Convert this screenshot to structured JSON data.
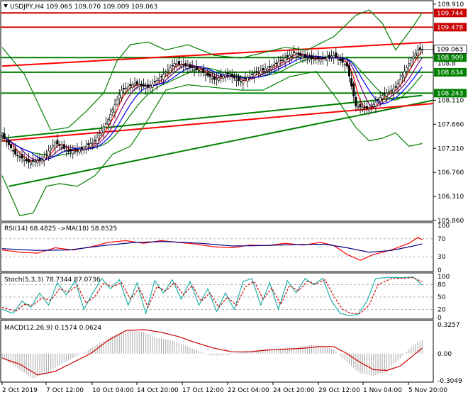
{
  "header": {
    "title": "USDJPY,H4  109.065 109.070 109.009 109.063"
  },
  "colors": {
    "bull": "#000000",
    "bear": "#000000",
    "bollinger": "#008000",
    "ma_fast": "#ff0000",
    "ma_mid": "#800080",
    "ma_slow": "#0000ff",
    "sr_line": "#cc0000",
    "trend_green": "#008000",
    "trend_red": "#ff0000",
    "rsi_line": "#ff0000",
    "rsi_ma": "#000080",
    "stoch_main": "#20b2aa",
    "stoch_signal": "#cc0000",
    "macd_hist": "#a9a9a9",
    "macd_signal": "#cc0000",
    "price_label_bg": "#cc0000",
    "level_label_bg": "#008000",
    "current_price_bg": "#ffffff"
  },
  "chart_data": [
    {
      "type": "candlestick",
      "title": "USDJPY,H4",
      "ohlc_readout": "109.065 109.070 109.009 109.063",
      "ylim": [
        105.86,
        109.96
      ],
      "y_ticks": [
        "109.910",
        "108.110",
        "107.660",
        "107.210",
        "106.760",
        "106.310",
        "105.860"
      ],
      "x_ticks": [
        "2 Oct 2019",
        "7 Oct 12:00",
        "10 Oct 04:00",
        "14 Oct 20:00",
        "17 Oct 12:00",
        "22 Oct 04:00",
        "24 Oct 20:00",
        "29 Oct 12:00",
        "1 Nov 04:00",
        "5 Nov 20:00"
      ],
      "horizontal_levels": [
        {
          "value": 109.744,
          "label": "109.744",
          "style": "red"
        },
        {
          "value": 109.478,
          "label": "109.478",
          "style": "red"
        },
        {
          "value": 108.909,
          "label": "108.909",
          "style": "green"
        },
        {
          "value": 108.634,
          "label": "108.634",
          "style": "green"
        },
        {
          "value": 108.243,
          "label": "108.243",
          "style": "green"
        }
      ],
      "current_price": {
        "value": 109.063,
        "label": "109.063"
      },
      "partial_tick_label": "108.8",
      "close_anchors": [
        [
          0,
          107.45
        ],
        [
          6,
          107.1
        ],
        [
          12,
          106.95
        ],
        [
          18,
          107.0
        ],
        [
          24,
          107.32
        ],
        [
          30,
          107.15
        ],
        [
          36,
          107.2
        ],
        [
          42,
          107.35
        ],
        [
          48,
          107.75
        ],
        [
          54,
          108.3
        ],
        [
          60,
          108.42
        ],
        [
          66,
          108.35
        ],
        [
          72,
          108.55
        ],
        [
          78,
          108.8
        ],
        [
          84,
          108.75
        ],
        [
          90,
          108.65
        ],
        [
          96,
          108.5
        ],
        [
          102,
          108.6
        ],
        [
          108,
          108.45
        ],
        [
          114,
          108.62
        ],
        [
          120,
          108.7
        ],
        [
          126,
          108.85
        ],
        [
          132,
          109.0
        ],
        [
          138,
          108.9
        ],
        [
          144,
          108.88
        ],
        [
          150,
          108.95
        ],
        [
          156,
          108.75
        ],
        [
          160,
          108.0
        ],
        [
          166,
          107.95
        ],
        [
          172,
          108.2
        ],
        [
          178,
          108.35
        ],
        [
          184,
          108.8
        ],
        [
          188,
          109.05
        ],
        [
          190,
          109.063
        ]
      ],
      "bollinger_anchors": {
        "upper": [
          [
            0,
            109.1
          ],
          [
            10,
            108.6
          ],
          [
            22,
            107.55
          ],
          [
            30,
            107.6
          ],
          [
            38,
            107.9
          ],
          [
            46,
            108.25
          ],
          [
            52,
            108.85
          ],
          [
            58,
            109.15
          ],
          [
            66,
            109.2
          ],
          [
            74,
            109.05
          ],
          [
            84,
            109.15
          ],
          [
            96,
            108.95
          ],
          [
            108,
            108.9
          ],
          [
            118,
            109.0
          ],
          [
            128,
            109.1
          ],
          [
            138,
            109.05
          ],
          [
            150,
            109.3
          ],
          [
            160,
            109.7
          ],
          [
            166,
            109.8
          ],
          [
            172,
            109.55
          ],
          [
            178,
            109.05
          ],
          [
            186,
            109.5
          ],
          [
            190,
            109.75
          ]
        ],
        "lower": [
          [
            0,
            106.7
          ],
          [
            8,
            105.95
          ],
          [
            14,
            106.0
          ],
          [
            20,
            106.5
          ],
          [
            26,
            106.55
          ],
          [
            34,
            106.5
          ],
          [
            42,
            106.7
          ],
          [
            50,
            107.1
          ],
          [
            58,
            107.25
          ],
          [
            66,
            107.75
          ],
          [
            74,
            108.3
          ],
          [
            84,
            108.4
          ],
          [
            96,
            108.35
          ],
          [
            108,
            108.3
          ],
          [
            118,
            108.3
          ],
          [
            130,
            108.55
          ],
          [
            142,
            108.65
          ],
          [
            152,
            108.1
          ],
          [
            160,
            107.6
          ],
          [
            166,
            107.35
          ],
          [
            172,
            107.4
          ],
          [
            178,
            107.5
          ],
          [
            184,
            107.25
          ],
          [
            190,
            107.3
          ]
        ]
      },
      "trendlines": [
        {
          "style": "green",
          "from": [
            3,
            106.5
          ],
          "to": [
            195,
            108.11
          ]
        },
        {
          "style": "green",
          "from": [
            0,
            107.4
          ],
          "to": [
            190,
            108.2
          ]
        },
        {
          "style": "red",
          "from": [
            0,
            107.35
          ],
          "to": [
            195,
            108.05
          ]
        },
        {
          "style": "red",
          "from": [
            0,
            108.75
          ],
          "to": [
            195,
            109.2
          ]
        }
      ]
    },
    {
      "type": "line",
      "title": "RSI(14) 68.4825  ->MA(18) 58.8525",
      "ylim": [
        0,
        100
      ],
      "y_ticks": [
        "100",
        "70",
        "30",
        "0"
      ],
      "levels": [
        70,
        30
      ],
      "rsi_anchors": [
        [
          0,
          45
        ],
        [
          8,
          40
        ],
        [
          16,
          38
        ],
        [
          24,
          50
        ],
        [
          32,
          45
        ],
        [
          40,
          52
        ],
        [
          48,
          62
        ],
        [
          56,
          66
        ],
        [
          64,
          60
        ],
        [
          72,
          66
        ],
        [
          80,
          62
        ],
        [
          88,
          58
        ],
        [
          96,
          52
        ],
        [
          104,
          50
        ],
        [
          112,
          56
        ],
        [
          120,
          55
        ],
        [
          128,
          60
        ],
        [
          136,
          56
        ],
        [
          144,
          62
        ],
        [
          150,
          55
        ],
        [
          156,
          35
        ],
        [
          162,
          22
        ],
        [
          168,
          35
        ],
        [
          176,
          45
        ],
        [
          184,
          60
        ],
        [
          188,
          73
        ],
        [
          190,
          68.4825
        ]
      ],
      "ma_anchors": [
        [
          0,
          48
        ],
        [
          16,
          44
        ],
        [
          30,
          45
        ],
        [
          46,
          55
        ],
        [
          60,
          62
        ],
        [
          74,
          64
        ],
        [
          90,
          60
        ],
        [
          104,
          54
        ],
        [
          118,
          55
        ],
        [
          132,
          57
        ],
        [
          146,
          58
        ],
        [
          156,
          50
        ],
        [
          166,
          40
        ],
        [
          176,
          44
        ],
        [
          186,
          54
        ],
        [
          190,
          58.8525
        ]
      ]
    },
    {
      "type": "line",
      "title": "Stoch(5,3,3) 78.7344 87.0736",
      "ylim": [
        0,
        100
      ],
      "y_ticks": [
        "100",
        "80",
        "50",
        "20",
        "0"
      ],
      "levels": [
        80,
        50,
        20
      ],
      "main_anchors": [
        [
          0,
          20
        ],
        [
          5,
          10
        ],
        [
          9,
          40
        ],
        [
          13,
          25
        ],
        [
          17,
          60
        ],
        [
          21,
          30
        ],
        [
          25,
          85
        ],
        [
          29,
          55
        ],
        [
          33,
          90
        ],
        [
          37,
          20
        ],
        [
          41,
          60
        ],
        [
          45,
          95
        ],
        [
          49,
          70
        ],
        [
          53,
          92
        ],
        [
          57,
          30
        ],
        [
          61,
          85
        ],
        [
          65,
          10
        ],
        [
          69,
          90
        ],
        [
          73,
          60
        ],
        [
          77,
          92
        ],
        [
          81,
          45
        ],
        [
          85,
          88
        ],
        [
          89,
          30
        ],
        [
          93,
          70
        ],
        [
          97,
          15
        ],
        [
          101,
          60
        ],
        [
          105,
          20
        ],
        [
          109,
          88
        ],
        [
          113,
          95
        ],
        [
          117,
          30
        ],
        [
          121,
          85
        ],
        [
          125,
          20
        ],
        [
          129,
          90
        ],
        [
          133,
          60
        ],
        [
          137,
          95
        ],
        [
          141,
          80
        ],
        [
          145,
          96
        ],
        [
          149,
          40
        ],
        [
          153,
          10
        ],
        [
          157,
          5
        ],
        [
          161,
          8
        ],
        [
          165,
          40
        ],
        [
          169,
          95
        ],
        [
          175,
          98
        ],
        [
          181,
          97
        ],
        [
          186,
          99
        ],
        [
          190,
          78.7344
        ]
      ],
      "signal_anchors": [
        [
          0,
          25
        ],
        [
          6,
          15
        ],
        [
          10,
          32
        ],
        [
          14,
          30
        ],
        [
          18,
          48
        ],
        [
          22,
          42
        ],
        [
          26,
          70
        ],
        [
          30,
          62
        ],
        [
          34,
          78
        ],
        [
          38,
          35
        ],
        [
          42,
          52
        ],
        [
          46,
          85
        ],
        [
          50,
          75
        ],
        [
          54,
          85
        ],
        [
          58,
          45
        ],
        [
          62,
          72
        ],
        [
          66,
          25
        ],
        [
          70,
          75
        ],
        [
          74,
          65
        ],
        [
          78,
          85
        ],
        [
          82,
          55
        ],
        [
          86,
          78
        ],
        [
          90,
          40
        ],
        [
          94,
          60
        ],
        [
          98,
          25
        ],
        [
          102,
          50
        ],
        [
          106,
          30
        ],
        [
          110,
          75
        ],
        [
          114,
          88
        ],
        [
          118,
          45
        ],
        [
          122,
          72
        ],
        [
          126,
          32
        ],
        [
          130,
          78
        ],
        [
          134,
          65
        ],
        [
          138,
          88
        ],
        [
          142,
          82
        ],
        [
          146,
          92
        ],
        [
          150,
          52
        ],
        [
          154,
          20
        ],
        [
          158,
          10
        ],
        [
          162,
          10
        ],
        [
          166,
          30
        ],
        [
          170,
          80
        ],
        [
          176,
          95
        ],
        [
          182,
          96
        ],
        [
          186,
          97
        ],
        [
          190,
          87.0736
        ]
      ]
    },
    {
      "type": "bar",
      "title": "MACD(12,26,9) 0.1574 0.0624",
      "ylim": [
        -0.3049,
        0.3257
      ],
      "y_ticks": [
        "0.3257",
        "0.00",
        "-0.3049"
      ],
      "hist_anchors": [
        [
          0,
          -0.05
        ],
        [
          8,
          -0.18
        ],
        [
          14,
          -0.28
        ],
        [
          20,
          -0.22
        ],
        [
          28,
          -0.1
        ],
        [
          36,
          0.0
        ],
        [
          44,
          0.12
        ],
        [
          52,
          0.22
        ],
        [
          58,
          0.26
        ],
        [
          64,
          0.24
        ],
        [
          70,
          0.18
        ],
        [
          78,
          0.14
        ],
        [
          86,
          0.06
        ],
        [
          94,
          -0.02
        ],
        [
          102,
          -0.02
        ],
        [
          110,
          0.03
        ],
        [
          118,
          0.05
        ],
        [
          126,
          0.06
        ],
        [
          134,
          0.08
        ],
        [
          142,
          0.1
        ],
        [
          150,
          0.05
        ],
        [
          156,
          -0.1
        ],
        [
          162,
          -0.22
        ],
        [
          168,
          -0.25
        ],
        [
          174,
          -0.2
        ],
        [
          180,
          -0.05
        ],
        [
          186,
          0.1
        ],
        [
          190,
          0.1574
        ]
      ],
      "signal_anchors": [
        [
          0,
          -0.05
        ],
        [
          8,
          -0.12
        ],
        [
          16,
          -0.24
        ],
        [
          24,
          -0.2
        ],
        [
          32,
          -0.1
        ],
        [
          40,
          0.0
        ],
        [
          48,
          0.15
        ],
        [
          56,
          0.26
        ],
        [
          64,
          0.27
        ],
        [
          72,
          0.24
        ],
        [
          80,
          0.19
        ],
        [
          88,
          0.12
        ],
        [
          96,
          0.06
        ],
        [
          104,
          0.02
        ],
        [
          112,
          0.02
        ],
        [
          120,
          0.04
        ],
        [
          128,
          0.05
        ],
        [
          136,
          0.06
        ],
        [
          144,
          0.08
        ],
        [
          150,
          0.08
        ],
        [
          156,
          0.0
        ],
        [
          162,
          -0.1
        ],
        [
          168,
          -0.18
        ],
        [
          174,
          -0.19
        ],
        [
          180,
          -0.14
        ],
        [
          186,
          -0.02
        ],
        [
          190,
          0.0624
        ]
      ]
    }
  ]
}
